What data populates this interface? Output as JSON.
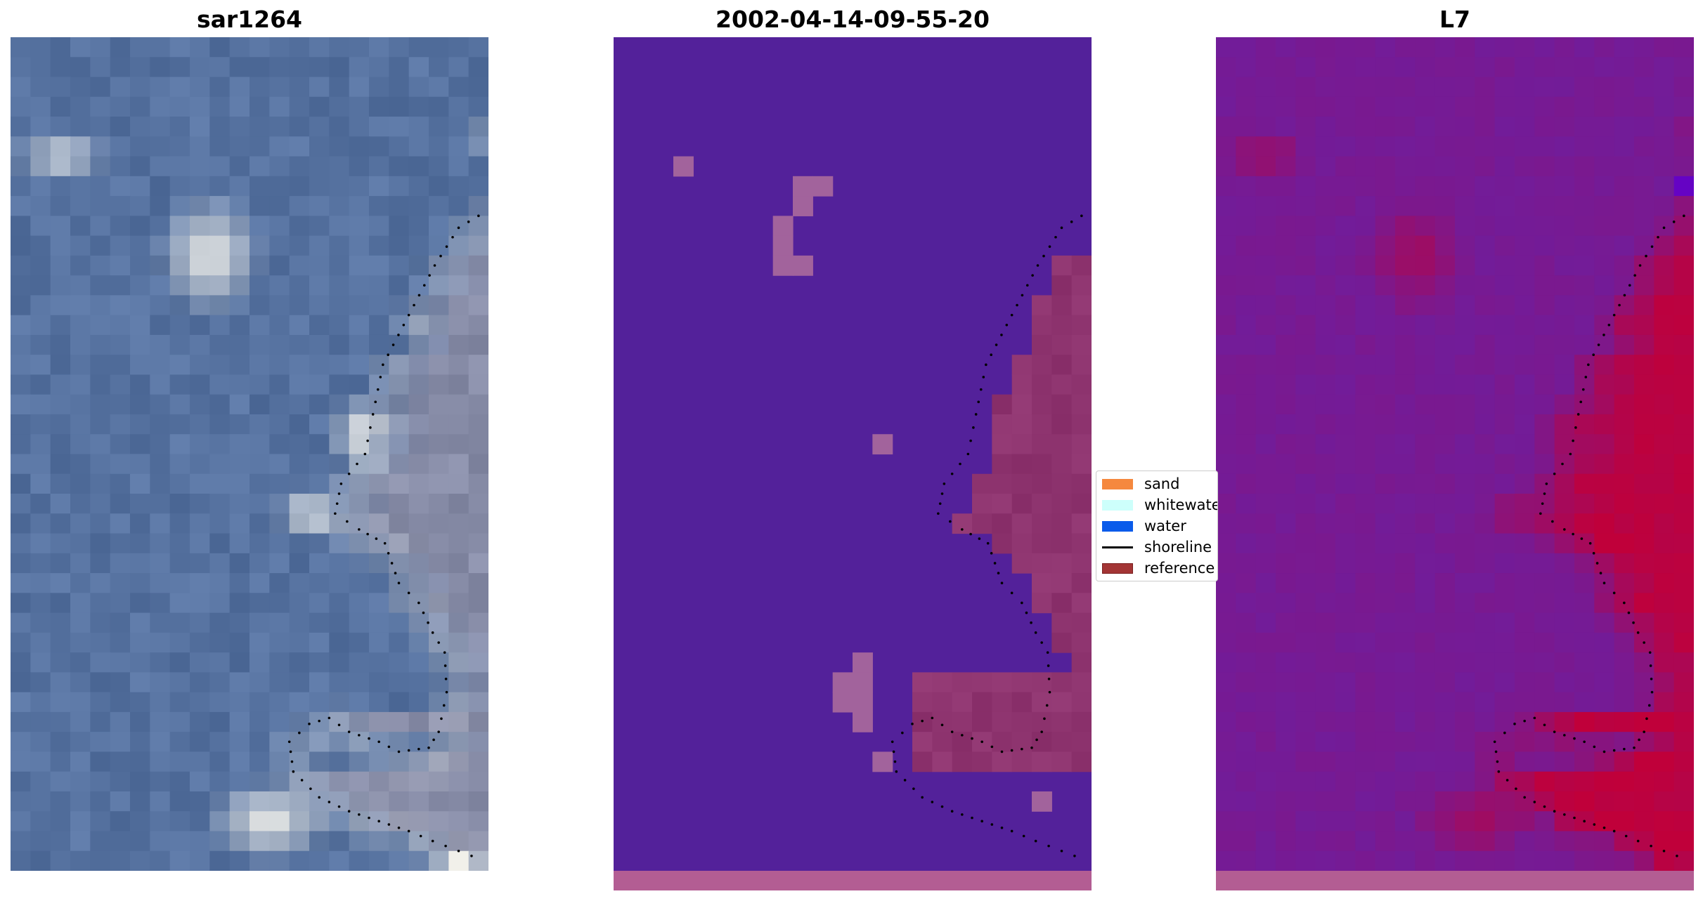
{
  "panels": {
    "rgb": {
      "title": "sar1264"
    },
    "classification": {
      "title": "2002-04-14-09-55-20"
    },
    "index": {
      "title": "L7"
    }
  },
  "legend": {
    "items": [
      {
        "label": "sand",
        "color": "#f5883e"
      },
      {
        "label": "whitewater",
        "color": "#cdfffb"
      },
      {
        "label": "water",
        "color": "#0a5bea"
      },
      {
        "label": "shoreline",
        "color": "#000000"
      },
      {
        "label": "reference",
        "color": "#a33535"
      }
    ]
  },
  "colors": {
    "rgb_water": "#5672a0",
    "rgb_land": "#8c8fa8",
    "rgb_foam": "#f1f0ea",
    "class_background": "#53219a",
    "class_reference": "#8e346f",
    "class_pink": "#a2639c",
    "class_bottom_strip": "#b35d93",
    "index_low": "#6c1ea0",
    "index_high": "#c0003a",
    "shoreline": "#000000"
  }
}
